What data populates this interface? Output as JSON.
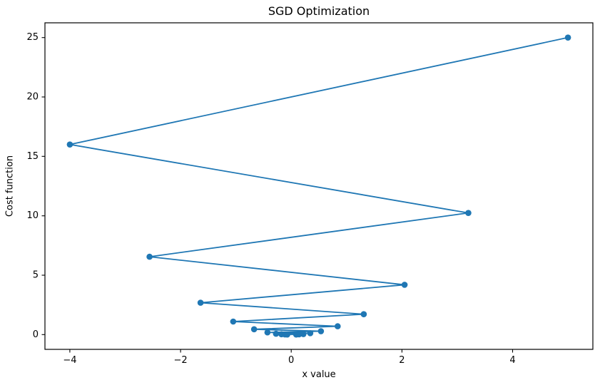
{
  "chart_data": {
    "type": "line",
    "title": "SGD Optimization",
    "xlabel": "x value",
    "ylabel": "Cost function",
    "line_color": "#1f77b4",
    "marker": "o",
    "grid": false,
    "xlim": [
      -4.45,
      5.45
    ],
    "ylim": [
      -1.24,
      26.24
    ],
    "xticks": [
      -4,
      -2,
      0,
      2,
      4
    ],
    "yticks": [
      0,
      5,
      10,
      15,
      20,
      25
    ],
    "x": [
      5.0,
      -4.0,
      3.2,
      -2.56,
      2.048,
      -1.6384,
      1.31072,
      -1.04858,
      0.83886,
      -0.67109,
      0.53687,
      -0.4295,
      0.3436,
      -0.27488,
      0.2199,
      -0.17592,
      0.14074,
      -0.11259,
      0.09007,
      -0.07206
    ],
    "y": [
      25.0,
      16.0,
      10.24,
      6.5536,
      4.1943,
      2.68435,
      1.71799,
      1.09951,
      0.70369,
      0.45036,
      0.28823,
      0.18447,
      0.11806,
      0.07556,
      0.04836,
      0.03095,
      0.01981,
      0.01268,
      0.00811,
      0.00519
    ]
  }
}
